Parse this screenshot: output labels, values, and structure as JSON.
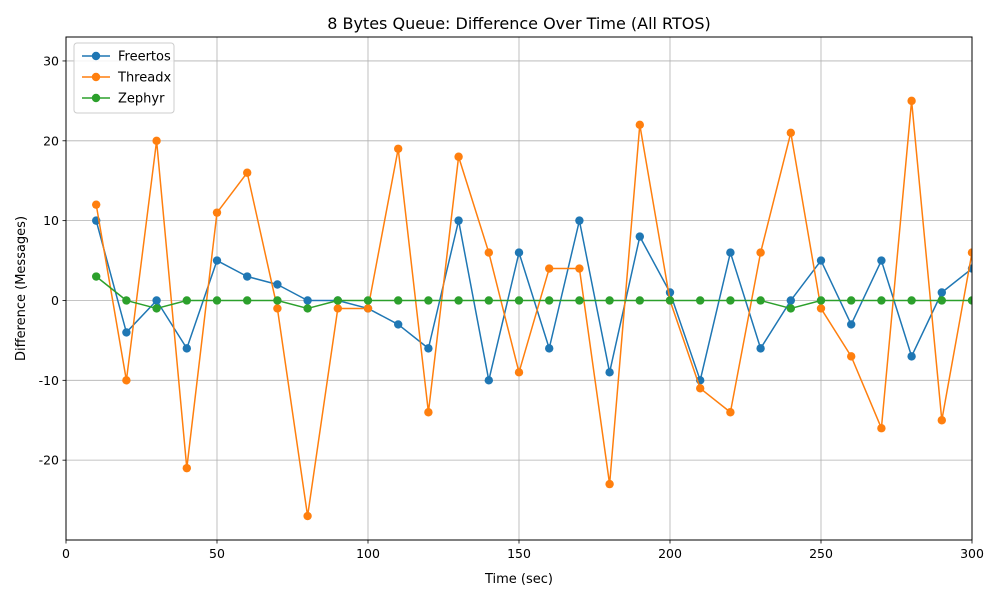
{
  "chart_data": {
    "type": "line",
    "title": "8 Bytes Queue: Difference Over Time (All RTOS)",
    "xlabel": "Time (sec)",
    "ylabel": "Difference (Messages)",
    "xlim": [
      0,
      300
    ],
    "ylim": [
      -30,
      33
    ],
    "xticks": [
      0,
      50,
      100,
      150,
      200,
      250,
      300
    ],
    "yticks": [
      -20,
      -10,
      0,
      10,
      20,
      30
    ],
    "grid": true,
    "legend_position": "top-left",
    "x": [
      10,
      20,
      30,
      40,
      50,
      60,
      70,
      80,
      90,
      100,
      110,
      120,
      130,
      140,
      150,
      160,
      170,
      180,
      190,
      200,
      210,
      220,
      230,
      240,
      250,
      260,
      270,
      280,
      290,
      300
    ],
    "series": [
      {
        "name": "Freertos",
        "color": "#1f77b4",
        "values": [
          10,
          -4,
          0,
          -6,
          5,
          3,
          2,
          0,
          0,
          -1,
          -3,
          -6,
          10,
          -10,
          6,
          -6,
          10,
          -9,
          8,
          1,
          -10,
          6,
          -6,
          0,
          5,
          -3,
          5,
          -7,
          1,
          4
        ]
      },
      {
        "name": "Threadx",
        "color": "#ff7f0e",
        "values": [
          12,
          -10,
          20,
          -21,
          11,
          16,
          -1,
          -27,
          -1,
          -1,
          19,
          -14,
          18,
          6,
          -9,
          4,
          4,
          -23,
          22,
          0,
          -11,
          -14,
          6,
          21,
          -1,
          -7,
          -16,
          25,
          -15,
          6
        ]
      },
      {
        "name": "Zephyr",
        "color": "#2ca02c",
        "values": [
          3,
          0,
          -1,
          0,
          0,
          0,
          0,
          -1,
          0,
          0,
          0,
          0,
          0,
          0,
          0,
          0,
          0,
          0,
          0,
          0,
          0,
          0,
          0,
          -1,
          0,
          0,
          0,
          0,
          0,
          0
        ]
      }
    ]
  }
}
